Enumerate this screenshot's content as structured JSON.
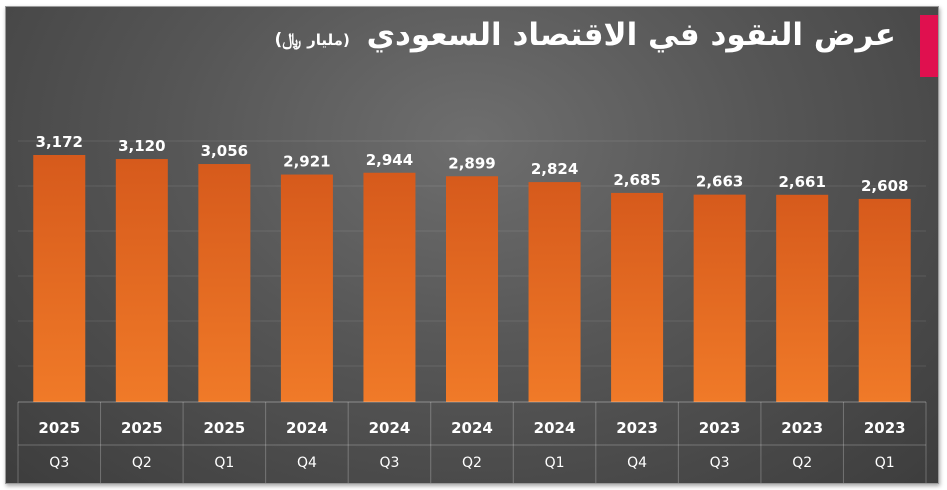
{
  "title": "عرض النقود في الاقتصاد السعودي",
  "unit": "(مليار",
  "currency_symbol": "﷼)",
  "colors": {
    "bar_top": "#d65a1c",
    "bar_bottom": "#f07a28",
    "accent": "#e0104f",
    "text": "#ffffff"
  },
  "chart_data": {
    "type": "bar",
    "categories": [
      [
        "2025",
        "Q3"
      ],
      [
        "2025",
        "Q2"
      ],
      [
        "2025",
        "Q1"
      ],
      [
        "2024",
        "Q4"
      ],
      [
        "2024",
        "Q3"
      ],
      [
        "2024",
        "Q2"
      ],
      [
        "2024",
        "Q1"
      ],
      [
        "2023",
        "Q4"
      ],
      [
        "2023",
        "Q3"
      ],
      [
        "2023",
        "Q2"
      ],
      [
        "2023",
        "Q1"
      ]
    ],
    "values": [
      3172,
      3120,
      3056,
      2921,
      2944,
      2899,
      2824,
      2685,
      2663,
      2661,
      2608
    ],
    "value_labels": [
      "3,172",
      "3,120",
      "3,056",
      "2,921",
      "2,944",
      "2,899",
      "2,824",
      "2,685",
      "2,663",
      "2,661",
      "2,608"
    ],
    "ylim": [
      0,
      3172
    ],
    "grid": true,
    "legend": "none"
  }
}
